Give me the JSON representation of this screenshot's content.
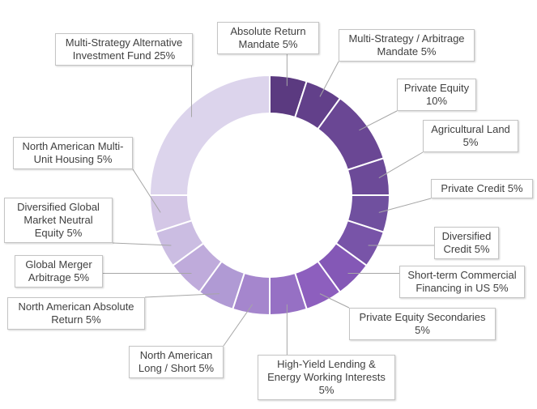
{
  "chart_data": {
    "type": "pie",
    "style": "donut",
    "legend": "none",
    "categories": [
      "Absolute Return Mandate",
      "Multi-Strategy / Arbitrage Mandate",
      "Private Equity",
      "Agricultural Land",
      "Private Credit",
      "Diversified Credit",
      "Short-term Commercial Financing in US",
      "Private Equity Secondaries",
      "High-Yield Lending & Energy Working Interests",
      "North American Long / Short",
      "North American Absolute Return",
      "Global Merger Arbitrage",
      "Diversified Global Market Neutral Equity",
      "North American Multi-Unit Housing",
      "Multi-Strategy Alternative Investment Fund"
    ],
    "values": [
      5,
      5,
      10,
      5,
      5,
      5,
      5,
      5,
      5,
      5,
      5,
      5,
      5,
      5,
      25
    ],
    "unit": "%",
    "colors": [
      "#5b3a80",
      "#62408a",
      "#6a4794",
      "#6c4a98",
      "#70509f",
      "#7854a8",
      "#8458b6",
      "#8d5fbe",
      "#9670c4",
      "#a586cd",
      "#b09ad4",
      "#bfabdb",
      "#cbbde2",
      "#d4c7e6",
      "#dcd4ec"
    ],
    "labels": [
      "Absolute Return\nMandate 5%",
      "Multi-Strategy / Arbitrage\nMandate 5%",
      "Private Equity\n10%",
      "Agricultural Land\n5%",
      "Private Credit 5%",
      "Diversified\nCredit 5%",
      "Short-term Commercial\nFinancing in US 5%",
      "Private Equity Secondaries\n5%",
      "High-Yield Lending &\nEnergy Working Interests\n5%",
      "North American\nLong / Short 5%",
      "North American Absolute\nReturn 5%",
      "Global Merger\nArbitrage 5%",
      "Diversified Global\nMarket Neutral\nEquity 5%",
      "North American Multi-\nUnit Housing 5%",
      "Multi-Strategy Alternative\nInvestment Fund 25%"
    ]
  }
}
